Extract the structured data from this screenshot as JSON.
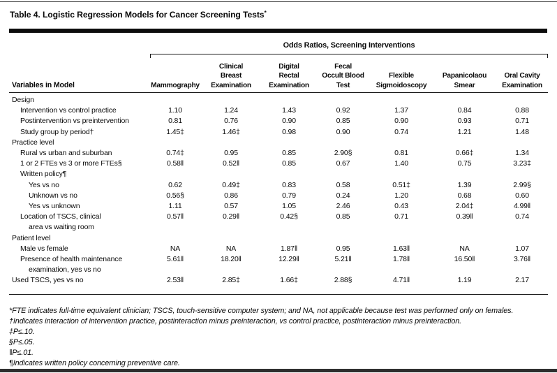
{
  "page": {
    "title": "Table 4. Logistic Regression Models for Cancer Screening Tests",
    "title_footnote_marker": "*"
  },
  "colors": {
    "background": "#ffffff",
    "text": "#0a0a0a",
    "rule": "#0d0d0d"
  },
  "table": {
    "spanner_label": "Odds Ratios, Screening Interventions",
    "stub_header": "Variables in Model",
    "column_headers": [
      {
        "lines": [
          "Mammography"
        ]
      },
      {
        "lines": [
          "Clinical",
          "Breast",
          "Examination"
        ]
      },
      {
        "lines": [
          "Digital",
          "Rectal",
          "Examination"
        ]
      },
      {
        "lines": [
          "Fecal",
          "Occult Blood",
          "Test"
        ]
      },
      {
        "lines": [
          "Flexible",
          "Sigmoidoscopy"
        ]
      },
      {
        "lines": [
          "Papanicolaou",
          "Smear"
        ]
      },
      {
        "lines": [
          "Oral Cavity",
          "Examination"
        ]
      }
    ],
    "rows": [
      {
        "label": "Design",
        "indent": 0,
        "type": "section",
        "values": [
          "",
          "",
          "",
          "",
          "",
          "",
          ""
        ]
      },
      {
        "label": "Intervention vs control practice",
        "indent": 1,
        "type": "data",
        "values": [
          "1.10",
          "1.24",
          "1.43",
          "0.92",
          "1.37",
          "0.84",
          "0.88"
        ]
      },
      {
        "label": "Postintervention vs preintervention",
        "indent": 1,
        "type": "data",
        "values": [
          "0.81",
          "0.76",
          "0.90",
          "0.85",
          "0.90",
          "0.93",
          "0.71"
        ]
      },
      {
        "label": "Study group by period†",
        "indent": 1,
        "type": "data",
        "values": [
          "1.45‡",
          "1.46‡",
          "0.98",
          "0.90",
          "0.74",
          "1.21",
          "1.48"
        ]
      },
      {
        "label": "Practice level",
        "indent": 0,
        "type": "section",
        "values": [
          "",
          "",
          "",
          "",
          "",
          "",
          ""
        ]
      },
      {
        "label": "Rural vs urban and suburban",
        "indent": 1,
        "type": "data",
        "values": [
          "0.74‡",
          "0.95",
          "0.85",
          "2.90§",
          "0.81",
          "0.66‡",
          "1.34"
        ]
      },
      {
        "label": "1 or 2 FTEs vs 3 or more FTEs§",
        "indent": 1,
        "type": "data",
        "values": [
          "0.58‖",
          "0.52‖",
          "0.85",
          "0.67",
          "1.40",
          "0.75",
          "3.23‡"
        ]
      },
      {
        "label": "Written policy¶",
        "indent": 1,
        "type": "section",
        "values": [
          "",
          "",
          "",
          "",
          "",
          "",
          ""
        ]
      },
      {
        "label": "Yes vs no",
        "indent": 2,
        "type": "data",
        "values": [
          "0.62",
          "0.49‡",
          "0.83",
          "0.58",
          "0.51‡",
          "1.39",
          "2.99§"
        ]
      },
      {
        "label": "Unknown vs no",
        "indent": 2,
        "type": "data",
        "values": [
          "0.56§",
          "0.86",
          "0.79",
          "0.24",
          "1.20",
          "0.68",
          "0.60"
        ]
      },
      {
        "label": "Yes vs unknown",
        "indent": 2,
        "type": "data",
        "values": [
          "1.11",
          "0.57",
          "1.05",
          "2.46",
          "0.43",
          "2.04‡",
          "4.99‖"
        ]
      },
      {
        "label": "Location of TSCS, clinical",
        "label_line2": "area vs waiting room",
        "indent": 1,
        "type": "data",
        "values": [
          "0.57‖",
          "0.29‖",
          "0.42§",
          "0.85",
          "0.71",
          "0.39‖",
          "0.74"
        ]
      },
      {
        "label": "Patient level",
        "indent": 0,
        "type": "section",
        "values": [
          "",
          "",
          "",
          "",
          "",
          "",
          ""
        ]
      },
      {
        "label": "Male vs female",
        "indent": 1,
        "type": "data",
        "values": [
          "NA",
          "NA",
          "1.87‖",
          "0.95",
          "1.63‖",
          "NA",
          "1.07"
        ]
      },
      {
        "label": "Presence of health maintenance",
        "label_line2": "examination, yes vs no",
        "indent": 1,
        "type": "data",
        "values": [
          "5.61‖",
          "18.20‖",
          "12.29‖",
          "5.21‖",
          "1.78‖",
          "16.50‖",
          "3.76‖"
        ]
      },
      {
        "label": "Used TSCS, yes vs no",
        "indent": 0,
        "type": "data",
        "values": [
          "2.53‖",
          "2.85‡",
          "1.66‡",
          "2.88§",
          "4.71‖",
          "1.19",
          "2.17"
        ]
      }
    ]
  },
  "footnotes": [
    {
      "marker": "*",
      "text": "FTE indicates full-time equivalent clinician; TSCS, touch-sensitive computer system; and NA, not applicable because test was performed only on females."
    },
    {
      "marker": "†",
      "text": "Indicates interaction of intervention practice, postinteraction minus preinteraction, vs control practice, postinteraction minus preinteraction."
    },
    {
      "marker": "‡",
      "text": "P≤.10."
    },
    {
      "marker": "§",
      "text": "P≤.05."
    },
    {
      "marker": "‖",
      "text": "P≤.01."
    },
    {
      "marker": "¶",
      "text": "Indicates written policy concerning preventive care."
    }
  ]
}
